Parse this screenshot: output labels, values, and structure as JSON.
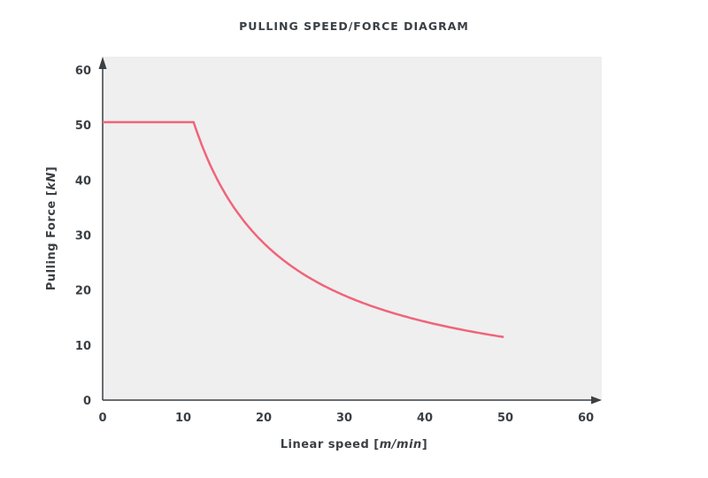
{
  "chart_data": {
    "type": "line",
    "title": "PULLING SPEED/FORCE DIAGRAM",
    "xlabel": {
      "text": "Linear speed [",
      "unit": "m/min",
      "close": "]"
    },
    "ylabel": {
      "text": "Pulling Force [",
      "unit": "kN",
      "close": "]"
    },
    "xlim": [
      0,
      60
    ],
    "ylim": [
      0,
      60
    ],
    "xticks": [
      "0",
      "10",
      "20",
      "30",
      "40",
      "50",
      "60"
    ],
    "yticks": [
      "0",
      "10",
      "20",
      "30",
      "40",
      "50",
      "60"
    ],
    "grid": false,
    "background": "#efefef",
    "series": [
      {
        "color": "#f0647a",
        "x": [
          0,
          11.3,
          12,
          13,
          14,
          15,
          17,
          20,
          23,
          26,
          30,
          34,
          38,
          42,
          46,
          50
        ],
        "y": [
          50.5,
          50.5,
          47.5,
          43.8,
          40.7,
          38.0,
          33.5,
          28.5,
          24.8,
          21.9,
          19.0,
          16.8,
          15.0,
          13.6,
          12.4,
          11.4
        ]
      }
    ]
  }
}
